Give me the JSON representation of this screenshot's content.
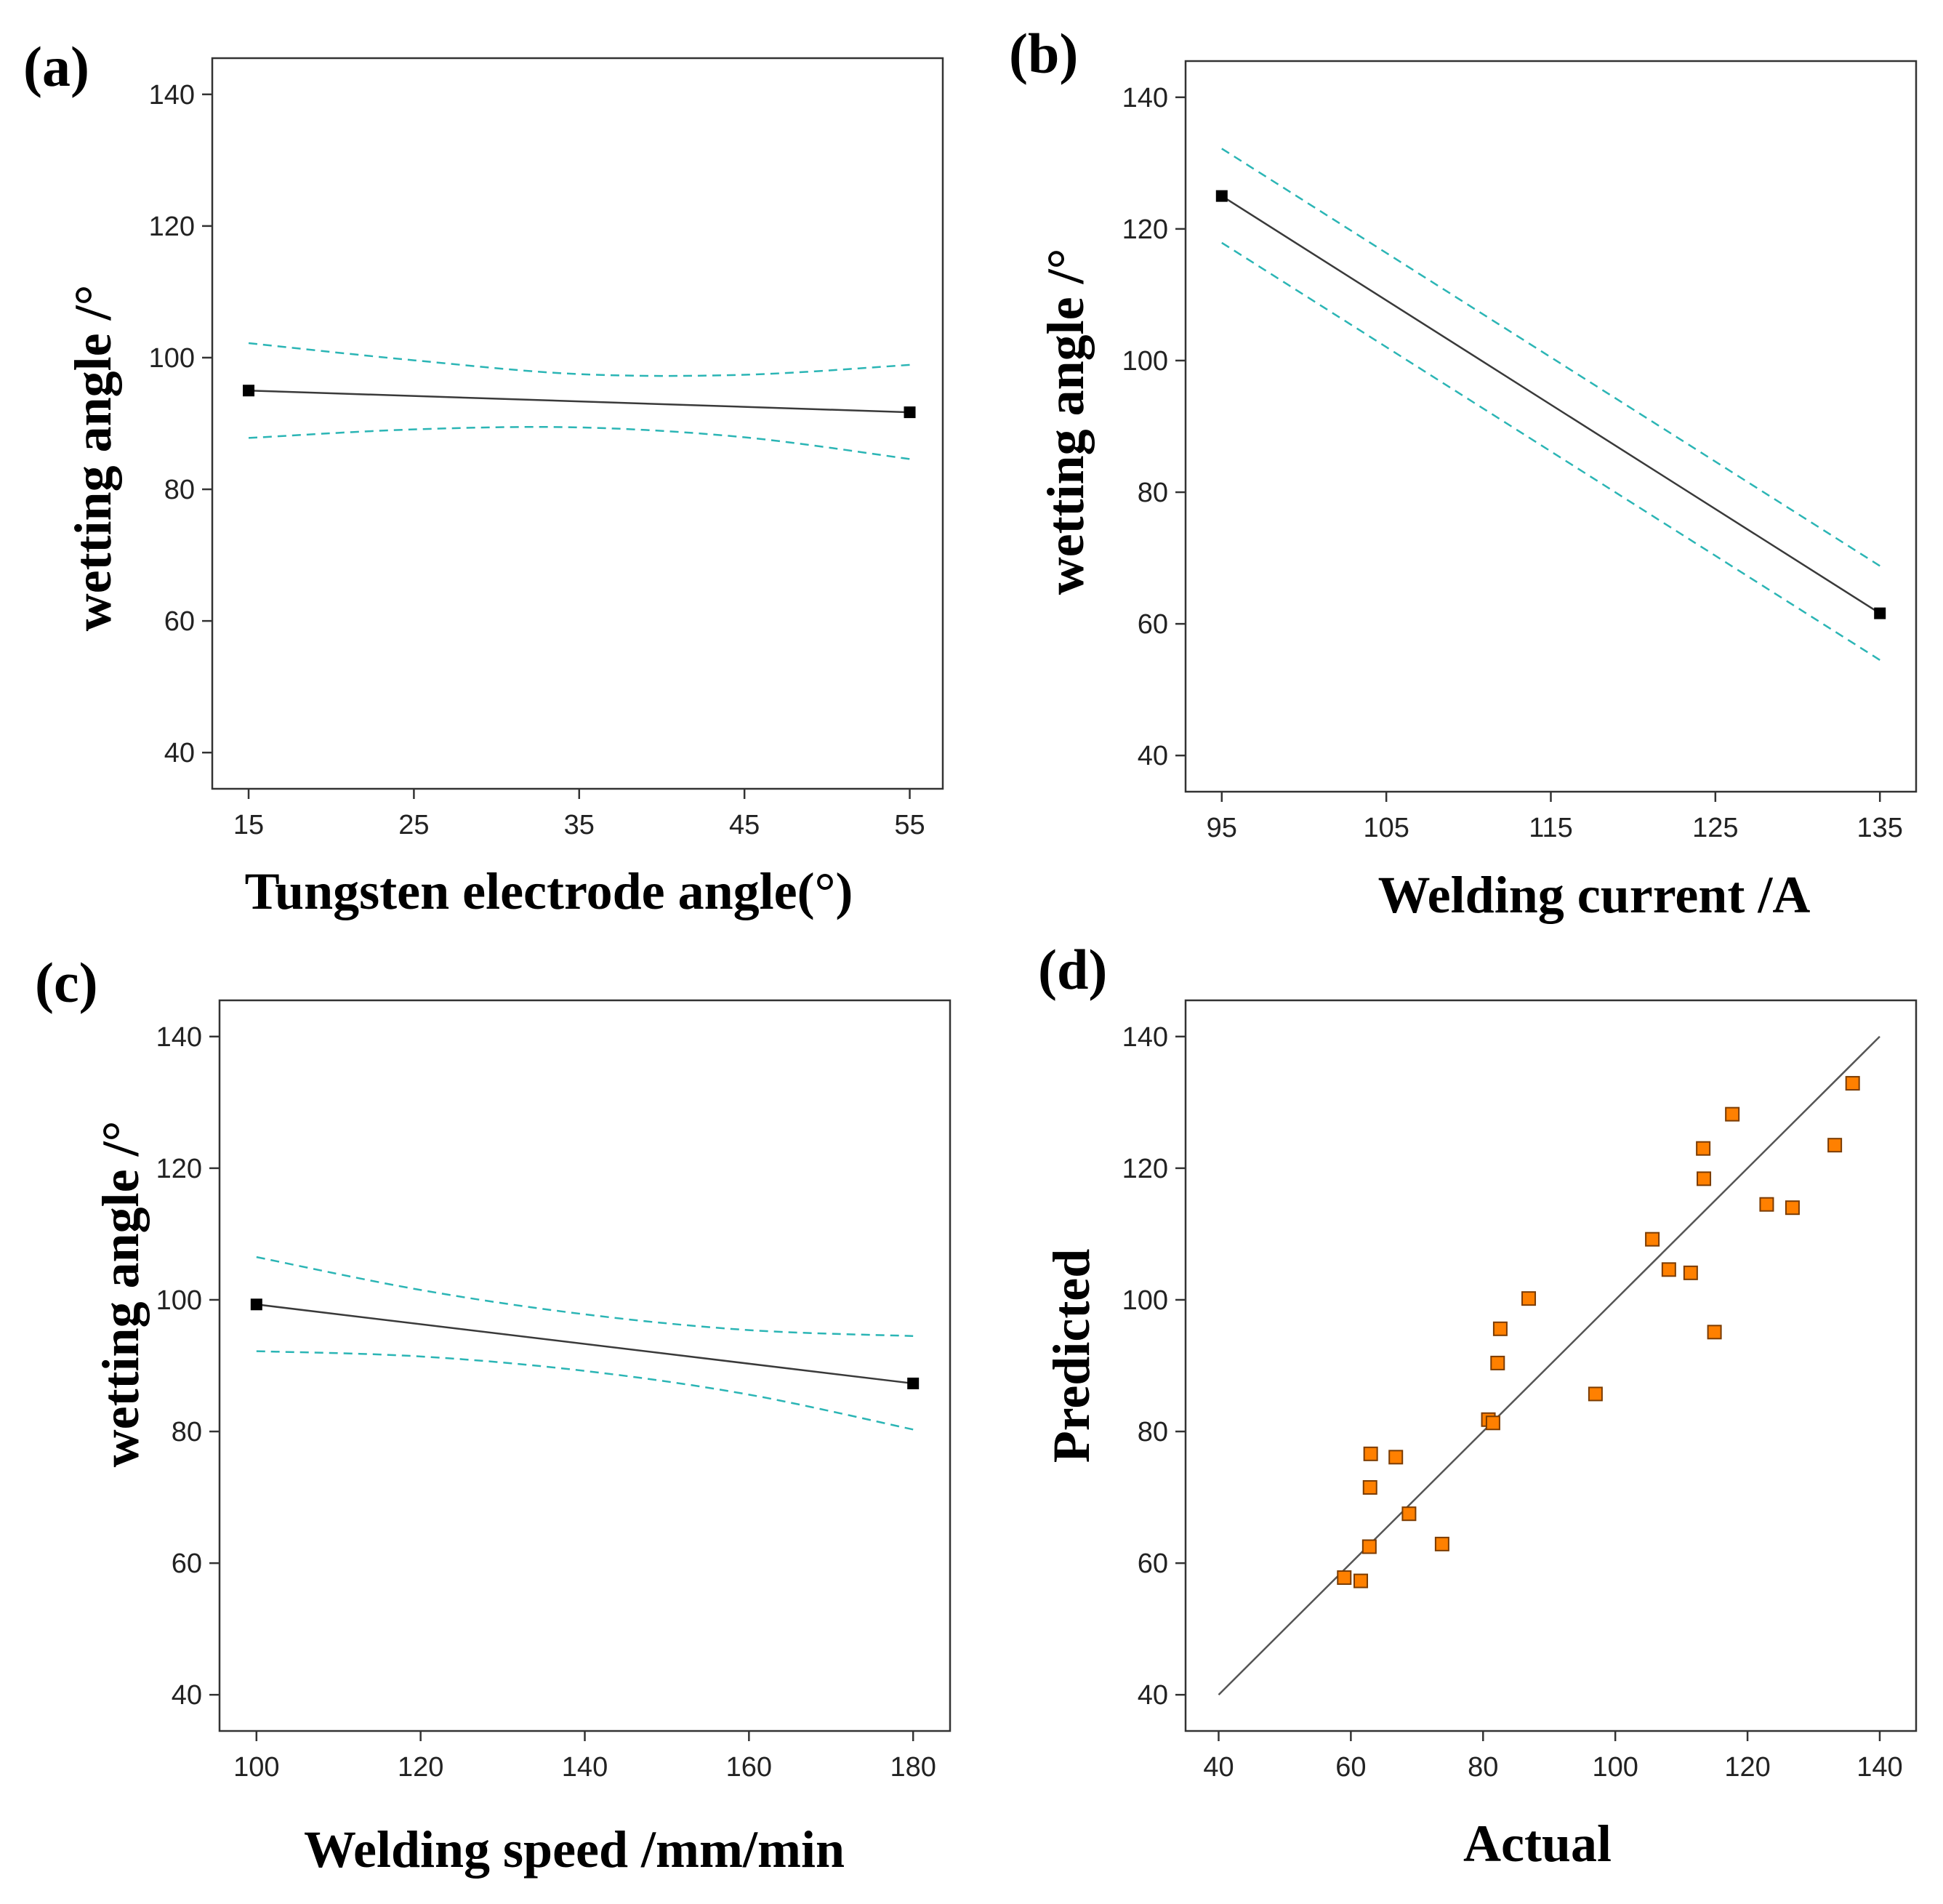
{
  "chart_data": [
    {
      "id": "a",
      "type": "line",
      "panel_label": "(a)",
      "xlabel": "Tungsten electrode angle(°)",
      "ylabel": "wetting angle /°",
      "xlim": [
        12.8,
        57
      ],
      "ylim": [
        34.5,
        145.5
      ],
      "xticks": [
        15,
        25,
        35,
        45,
        55
      ],
      "yticks": [
        40,
        60,
        80,
        100,
        120,
        140
      ],
      "fit": {
        "x": [
          15,
          55
        ],
        "y": [
          95.0,
          91.7
        ]
      },
      "ci_upper": {
        "x": [
          15,
          25,
          35,
          45,
          55
        ],
        "y": [
          102.2,
          99.6,
          97.5,
          97.4,
          98.9
        ]
      },
      "ci_lower": {
        "x": [
          15,
          25,
          35,
          45,
          55
        ],
        "y": [
          87.8,
          89.1,
          89.4,
          87.9,
          84.6
        ]
      },
      "endpoints": [
        {
          "x": 15,
          "y": 95.0
        },
        {
          "x": 55,
          "y": 91.7
        }
      ]
    },
    {
      "id": "b",
      "type": "line",
      "panel_label": "(b)",
      "xlabel": "Welding current /A",
      "ylabel": "wetting angle /°",
      "xlim": [
        92.8,
        137.2
      ],
      "ylim": [
        34.5,
        145.5
      ],
      "xticks": [
        95,
        105,
        115,
        125,
        135
      ],
      "yticks": [
        40,
        60,
        80,
        100,
        120,
        140
      ],
      "fit": {
        "x": [
          95,
          135
        ],
        "y": [
          125.0,
          61.6
        ]
      },
      "ci_upper": {
        "x": [
          95,
          135
        ],
        "y": [
          132.2,
          68.8
        ]
      },
      "ci_lower": {
        "x": [
          95,
          135
        ],
        "y": [
          117.9,
          54.5
        ]
      },
      "endpoints": [
        {
          "x": 95,
          "y": 125.0
        },
        {
          "x": 135,
          "y": 61.6
        }
      ]
    },
    {
      "id": "c",
      "type": "line",
      "panel_label": "(c)",
      "xlabel": "Welding speed /mm/min",
      "ylabel": "wetting angle /°",
      "xlim": [
        95.5,
        184.5
      ],
      "ylim": [
        34.5,
        145.5
      ],
      "xticks": [
        100,
        120,
        140,
        160,
        180
      ],
      "yticks": [
        40,
        60,
        80,
        100,
        120,
        140
      ],
      "fit": {
        "x": [
          100,
          180
        ],
        "y": [
          99.3,
          87.3
        ]
      },
      "ci_upper": {
        "x": [
          100,
          120,
          140,
          160,
          180
        ],
        "y": [
          106.5,
          101.5,
          97.8,
          95.4,
          94.5
        ]
      },
      "ci_lower": {
        "x": [
          100,
          120,
          140,
          160,
          180
        ],
        "y": [
          92.2,
          91.4,
          89.2,
          85.6,
          80.3
        ]
      },
      "endpoints": [
        {
          "x": 100,
          "y": 99.3
        },
        {
          "x": 180,
          "y": 87.3
        }
      ]
    },
    {
      "id": "d",
      "type": "scatter",
      "panel_label": "(d)",
      "xlabel": "Actual",
      "ylabel": "Predicted",
      "xlim": [
        35,
        145.5
      ],
      "ylim": [
        34.5,
        145.5
      ],
      "xticks": [
        40,
        60,
        80,
        100,
        120,
        140
      ],
      "yticks": [
        40,
        60,
        80,
        100,
        120,
        140
      ],
      "reference_line": {
        "x": [
          40,
          140
        ],
        "y": [
          40,
          140
        ]
      },
      "points": [
        {
          "x": 59,
          "y": 57.8
        },
        {
          "x": 61.5,
          "y": 57.3
        },
        {
          "x": 62.8,
          "y": 62.5
        },
        {
          "x": 62.9,
          "y": 71.5
        },
        {
          "x": 63,
          "y": 76.6
        },
        {
          "x": 66.8,
          "y": 76.1
        },
        {
          "x": 68.8,
          "y": 67.5
        },
        {
          "x": 73.8,
          "y": 62.9
        },
        {
          "x": 80.8,
          "y": 81.8
        },
        {
          "x": 81.5,
          "y": 81.3
        },
        {
          "x": 82.2,
          "y": 90.4
        },
        {
          "x": 82.6,
          "y": 95.6
        },
        {
          "x": 86.9,
          "y": 100.2
        },
        {
          "x": 97,
          "y": 85.7
        },
        {
          "x": 105.6,
          "y": 109.2
        },
        {
          "x": 108.1,
          "y": 104.6
        },
        {
          "x": 111.4,
          "y": 104.1
        },
        {
          "x": 113.3,
          "y": 123.0
        },
        {
          "x": 113.4,
          "y": 118.4
        },
        {
          "x": 115,
          "y": 95.1
        },
        {
          "x": 117.7,
          "y": 128.2
        },
        {
          "x": 122.9,
          "y": 114.5
        },
        {
          "x": 126.8,
          "y": 114.0
        },
        {
          "x": 133.2,
          "y": 123.5
        },
        {
          "x": 135.9,
          "y": 132.9
        }
      ]
    }
  ]
}
